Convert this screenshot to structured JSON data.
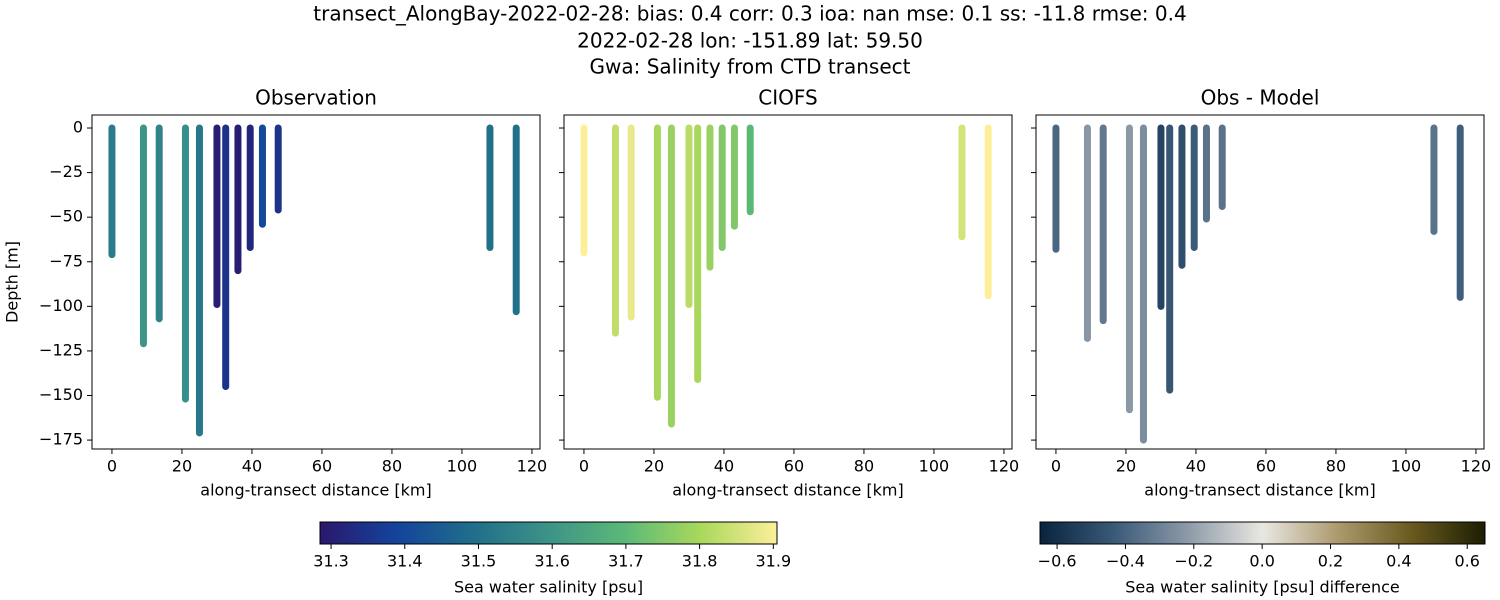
{
  "suptitle": [
    "transect_AlongBay-2022-02-28: bias: 0.4  corr: 0.3  ioa: nan  mse: 0.1  ss: -11.8  rmse: 0.4",
    "2022-02-28 lon: -151.89 lat: 59.50",
    "Gwa: Salinity from CTD transect"
  ],
  "chart_data": [
    {
      "type": "profile",
      "title": "Observation",
      "xlabel": "along-transect distance [km]",
      "ylabel": "Depth [m]",
      "x": [
        0,
        9,
        13.5,
        21,
        25,
        30,
        32.5,
        36,
        39.5,
        43,
        47.5,
        108,
        115.5
      ],
      "y": [
        -71,
        -121,
        -107,
        -152,
        -171,
        -99,
        -145,
        -80,
        -67,
        -54,
        -46,
        -67,
        -103
      ],
      "values": [
        31.53,
        31.6,
        31.55,
        31.58,
        31.52,
        31.3,
        31.35,
        31.3,
        31.32,
        31.4,
        31.35,
        31.5,
        31.5
      ],
      "xlim": [
        -5.7,
        122.3
      ],
      "ylim": [
        -180,
        7.3
      ],
      "xticks": [
        0,
        20,
        40,
        60,
        80,
        100,
        120
      ],
      "yticks": [
        {
          "value": 0,
          "label": "0"
        },
        {
          "value": -25,
          "label": "−25"
        },
        {
          "value": -50,
          "label": "−50"
        },
        {
          "value": -75,
          "label": "−75"
        },
        {
          "value": -100,
          "label": "−100"
        },
        {
          "value": -125,
          "label": "−125"
        },
        {
          "value": -150,
          "label": "−150"
        },
        {
          "value": -175,
          "label": "−175"
        }
      ]
    },
    {
      "type": "profile",
      "title": "CIOFS",
      "xlabel": "along-transect distance [km]",
      "x": [
        0,
        9,
        13.5,
        21,
        25,
        30,
        32.5,
        36,
        39.5,
        43,
        47.5,
        108,
        115.5
      ],
      "y": [
        -70,
        -115,
        -106,
        -151,
        -166,
        -99,
        -141,
        -78,
        -67,
        -55,
        -47,
        -61,
        -94
      ],
      "values": [
        31.92,
        31.83,
        31.88,
        31.8,
        31.78,
        31.82,
        31.8,
        31.78,
        31.75,
        31.75,
        31.7,
        31.85,
        31.92
      ],
      "xlim": [
        -5.7,
        122.3
      ],
      "ylim": [
        -180,
        7.3
      ],
      "xticks": [
        0,
        20,
        40,
        60,
        80,
        100,
        120
      ],
      "yticks": [
        0,
        -25,
        -50,
        -75,
        -100,
        -125,
        -150,
        -175
      ]
    },
    {
      "type": "profile",
      "title": "Obs - Model",
      "xlabel": "along-transect distance [km]",
      "x": [
        0,
        9,
        13.5,
        21,
        25,
        30,
        32.5,
        36,
        39.5,
        43,
        47.5,
        108,
        115.5
      ],
      "y": [
        -68,
        -118,
        -108,
        -158,
        -175,
        -100,
        -147,
        -77,
        -67,
        -51,
        -44,
        -58,
        -95
      ],
      "values": [
        -0.39,
        -0.23,
        -0.33,
        -0.22,
        -0.26,
        -0.52,
        -0.45,
        -0.48,
        -0.43,
        -0.35,
        -0.35,
        -0.35,
        -0.42
      ],
      "xlim": [
        -5.7,
        122.3
      ],
      "ylim": [
        -180,
        7.3
      ],
      "xticks": [
        0,
        20,
        40,
        60,
        80,
        100,
        120
      ],
      "yticks": [
        0,
        -25,
        -50,
        -75,
        -100,
        -125,
        -150,
        -175
      ]
    }
  ],
  "colorbars": [
    {
      "label": "Sea water salinity [psu]",
      "lim": [
        31.285,
        31.905
      ],
      "ticks": [
        31.3,
        31.4,
        31.5,
        31.6,
        31.7,
        31.8,
        31.9
      ],
      "colors": [
        "#2a186c",
        "#14439c",
        "#206e8b",
        "#3c9387",
        "#5ab978",
        "#aad85c",
        "#fdef9a"
      ]
    },
    {
      "label": "Sea water salinity [psu] difference",
      "lim": [
        -0.65,
        0.652
      ],
      "ticks": [
        {
          "value": -0.6,
          "label": "−0.6"
        },
        {
          "value": -0.4,
          "label": "−0.4"
        },
        {
          "value": -0.2,
          "label": "−0.2"
        },
        {
          "value": 0,
          "label": "0.0"
        },
        0.2,
        0.4,
        0.6
      ],
      "colors": [
        "#08233e",
        "#3a5a78",
        "#8d9aa8",
        "#e9e7e2",
        "#ad9b6f",
        "#6b5a1f",
        "#1c1e03"
      ]
    }
  ]
}
